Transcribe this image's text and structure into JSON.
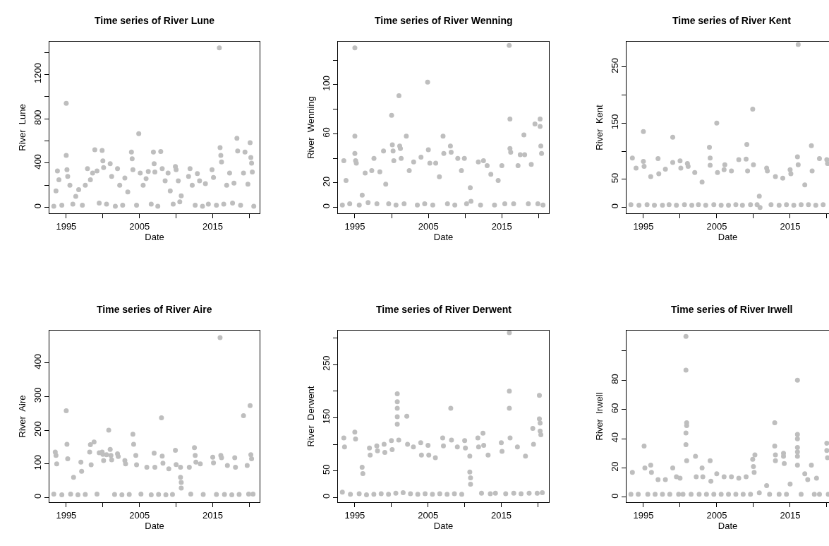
{
  "chart_data": [
    {
      "type": "scatter",
      "title": "Time series of River Lune",
      "xlabel": "Date",
      "ylabel": "River  Lune",
      "color": "#bebebe",
      "marker": "circle",
      "xlim": [
        1992.7,
        2021.4
      ],
      "ylim": [
        -53,
        1496
      ],
      "xticks": [
        1995,
        {
          "value": 2000,
          "label": null
        },
        2005,
        {
          "value": 2010,
          "label": null
        },
        2015,
        {
          "value": 2020,
          "label": null
        }
      ],
      "yticks": [
        0,
        {
          "value": 200,
          "label": null
        },
        400,
        {
          "value": 600,
          "label": null
        },
        800,
        {
          "value": 1000,
          "label": null
        },
        1200,
        {
          "value": 1400,
          "label": null
        }
      ],
      "x": [
        1993.3,
        1993.6,
        1993.8,
        1994.0,
        1994.4,
        1995.0,
        1995.0,
        1995.1,
        1995.2,
        1995.5,
        1995.9,
        1996.3,
        1996.7,
        1997.2,
        1997.6,
        1997.9,
        1998.3,
        1998.6,
        1998.9,
        1999.2,
        1999.5,
        1999.9,
        2000.0,
        2000.1,
        2000.5,
        2001.0,
        2001.2,
        2001.7,
        2002.0,
        2002.3,
        2002.7,
        2003.0,
        2003.4,
        2003.9,
        2004.0,
        2004.1,
        2004.6,
        2004.9,
        2005.1,
        2005.5,
        2005.9,
        2006.2,
        2006.6,
        2006.9,
        2007.0,
        2007.1,
        2007.5,
        2007.9,
        2008.1,
        2008.5,
        2008.9,
        2009.2,
        2009.6,
        2009.9,
        2010.0,
        2010.3,
        2010.5,
        2010.7,
        2011.7,
        2011.9,
        2012.2,
        2012.6,
        2012.9,
        2013.2,
        2013.6,
        2014.0,
        2014.4,
        2014.9,
        2015.1,
        2015.5,
        2015.9,
        2016.0,
        2016.1,
        2016.2,
        2016.5,
        2016.9,
        2017.3,
        2017.7,
        2017.9,
        2018.3,
        2018.4,
        2018.8,
        2019.2,
        2019.4,
        2019.8,
        2020.1,
        2020.2,
        2020.3,
        2020.4,
        2020.6
      ],
      "values": [
        10,
        150,
        330,
        250,
        20,
        940,
        470,
        340,
        280,
        200,
        30,
        100,
        160,
        20,
        200,
        350,
        250,
        310,
        520,
        330,
        40,
        515,
        420,
        360,
        30,
        395,
        280,
        10,
        350,
        200,
        20,
        265,
        140,
        500,
        440,
        340,
        20,
        665,
        310,
        200,
        260,
        325,
        30,
        500,
        395,
        320,
        10,
        505,
        350,
        240,
        310,
        150,
        30,
        370,
        340,
        240,
        50,
        105,
        280,
        350,
        200,
        20,
        305,
        240,
        10,
        215,
        30,
        340,
        270,
        20,
        1440,
        540,
        470,
        410,
        30,
        200,
        310,
        40,
        220,
        625,
        510,
        20,
        310,
        500,
        210,
        585,
        450,
        400,
        320,
        10
      ]
    },
    {
      "type": "scatter",
      "title": "Time series of River Wenning",
      "xlabel": "Date",
      "ylabel": "River  Wenning",
      "color": "#bebebe",
      "marker": "circle",
      "xlim": [
        1992.7,
        2021.4
      ],
      "ylim": [
        -4.8,
        135
      ],
      "xticks": [
        1995,
        {
          "value": 2000,
          "label": null
        },
        2005,
        {
          "value": 2010,
          "label": null
        },
        2015,
        {
          "value": 2020,
          "label": null
        }
      ],
      "yticks": [
        0,
        20,
        {
          "value": 40,
          "label": null
        },
        60,
        {
          "value": 80,
          "label": null
        },
        100,
        {
          "value": 120,
          "label": null
        }
      ],
      "x": [
        1993.3,
        1993.5,
        1993.8,
        1994.3,
        1995.0,
        1995.0,
        1995.0,
        1995.1,
        1995.2,
        1995.6,
        1996.0,
        1996.4,
        1996.8,
        1997.3,
        1997.6,
        1998.0,
        1998.4,
        1998.9,
        1999.2,
        1999.6,
        2000.0,
        2000.1,
        2000.2,
        2000.3,
        2000.6,
        2001.0,
        2001.1,
        2001.2,
        2001.3,
        2001.7,
        2002.0,
        2002.4,
        2003.0,
        2003.5,
        2004.0,
        2004.5,
        2004.9,
        2005.0,
        2005.2,
        2005.6,
        2006.0,
        2006.5,
        2007.0,
        2007.1,
        2007.6,
        2008.0,
        2008.1,
        2008.6,
        2009.0,
        2009.5,
        2009.9,
        2010.2,
        2010.7,
        2010.8,
        2011.8,
        2012.1,
        2012.5,
        2013.0,
        2013.5,
        2014.0,
        2014.5,
        2015.0,
        2015.4,
        2016.0,
        2016.1,
        2016.1,
        2016.2,
        2016.6,
        2017.2,
        2017.5,
        2018.0,
        2018.1,
        2018.6,
        2019.0,
        2019.5,
        2019.9,
        2020.2,
        2020.2,
        2020.3,
        2020.4,
        2020.6
      ],
      "values": [
        2,
        38,
        22,
        3,
        130,
        58,
        44,
        38,
        36,
        2,
        10,
        28,
        4,
        30,
        40,
        3,
        29,
        46,
        19,
        3,
        75,
        51,
        46,
        38,
        2,
        91,
        50,
        48,
        40,
        3,
        58,
        30,
        37,
        2,
        41,
        3,
        102,
        47,
        36,
        2,
        36,
        25,
        58,
        44,
        3,
        50,
        45,
        2,
        40,
        30,
        40,
        3,
        16,
        5,
        37,
        2,
        38,
        34,
        27,
        2,
        22,
        34,
        3,
        132,
        72,
        48,
        45,
        3,
        34,
        43,
        59,
        43,
        3,
        35,
        68,
        3,
        72,
        66,
        50,
        44,
        2
      ]
    },
    {
      "type": "scatter",
      "title": "Time series of River Kent",
      "xlabel": "Date",
      "ylabel": "River  Kent",
      "color": "#bebebe",
      "marker": "circle",
      "xlim": [
        1992.7,
        2020.3
      ],
      "ylim": [
        -10.5,
        295
      ],
      "xticks": [
        1995,
        {
          "value": 2000,
          "label": null
        },
        2005,
        {
          "value": 2010,
          "label": null
        },
        2015,
        {
          "value": 2020,
          "label": null
        }
      ],
      "yticks": [
        0,
        50,
        {
          "value": 100,
          "label": null
        },
        150,
        {
          "value": 200,
          "label": null
        },
        250
      ],
      "x": [
        1993.3,
        1993.5,
        1994.0,
        1994.4,
        1995.0,
        1995.0,
        1995.1,
        1995.5,
        1996.0,
        1996.5,
        1997.0,
        1997.1,
        1997.6,
        1998.0,
        1998.5,
        1999.0,
        1999.0,
        1999.5,
        2000.0,
        2000.1,
        2000.6,
        2001.0,
        2001.1,
        2001.6,
        2002.0,
        2002.5,
        2003.0,
        2003.5,
        2004.0,
        2004.1,
        2004.1,
        2004.6,
        2005.0,
        2005.1,
        2005.6,
        2006.0,
        2006.1,
        2006.6,
        2007.0,
        2007.6,
        2008.0,
        2008.5,
        2009.0,
        2009.1,
        2009.2,
        2009.6,
        2009.9,
        2010.0,
        2010.5,
        2010.8,
        2010.9,
        2011.8,
        2011.9,
        2012.4,
        2013.0,
        2013.5,
        2014.0,
        2014.5,
        2015.0,
        2015.1,
        2015.5,
        2016.0,
        2016.1,
        2016.1,
        2016.5,
        2017.0,
        2017.5,
        2017.9,
        2018.0,
        2018.5,
        2019.0,
        2019.5,
        2020.0,
        2020.1
      ],
      "values": [
        5,
        88,
        70,
        4,
        135,
        82,
        73,
        5,
        55,
        4,
        87,
        60,
        4,
        68,
        5,
        125,
        80,
        4,
        83,
        70,
        5,
        78,
        73,
        4,
        62,
        5,
        45,
        4,
        107,
        88,
        75,
        5,
        150,
        62,
        4,
        67,
        76,
        4,
        65,
        5,
        85,
        4,
        86,
        112,
        65,
        5,
        175,
        76,
        5,
        20,
        0,
        70,
        65,
        5,
        55,
        4,
        52,
        5,
        67,
        60,
        4,
        90,
        290,
        76,
        5,
        40,
        5,
        110,
        65,
        4,
        87,
        5,
        85,
        78
      ]
    },
    {
      "type": "scatter",
      "title": "Time series of River Aire",
      "xlabel": "Date",
      "ylabel": "River  Aire",
      "color": "#bebebe",
      "marker": "circle",
      "xlim": [
        1992.7,
        2021.4
      ],
      "ylim": [
        -14,
        496
      ],
      "xticks": [
        1995,
        {
          "value": 2000,
          "label": null
        },
        2005,
        {
          "value": 2010,
          "label": null
        },
        2015,
        {
          "value": 2020,
          "label": null
        }
      ],
      "yticks": [
        0,
        100,
        200,
        300,
        400
      ],
      "x": [
        1993.3,
        1993.5,
        1993.6,
        1993.7,
        1994.4,
        1995.0,
        1995.1,
        1995.2,
        1995.6,
        1996.0,
        1996.6,
        1997.0,
        1997.1,
        1997.6,
        1998.2,
        1998.3,
        1998.4,
        1998.8,
        1999.2,
        1999.5,
        1999.9,
        2000.0,
        2000.1,
        2000.5,
        2000.8,
        2001.0,
        2001.1,
        2001.2,
        2001.6,
        2002.0,
        2002.1,
        2002.6,
        2003.0,
        2003.1,
        2003.6,
        2004.1,
        2004.2,
        2004.5,
        2004.6,
        2005.2,
        2006.0,
        2006.6,
        2007.0,
        2007.1,
        2007.6,
        2008.0,
        2008.1,
        2008.2,
        2008.6,
        2009.0,
        2009.5,
        2009.9,
        2010.0,
        2010.6,
        2010.6,
        2010.7,
        2010.7,
        2011.8,
        2012.0,
        2012.5,
        2012.6,
        2012.7,
        2013.3,
        2013.7,
        2015.0,
        2015.1,
        2015.5,
        2016.0,
        2016.1,
        2016.2,
        2016.6,
        2017.0,
        2017.6,
        2018.0,
        2018.1,
        2018.6,
        2019.2,
        2019.7,
        2019.9,
        2020.1,
        2020.2,
        2020.3,
        2020.5
      ],
      "values": [
        10,
        135,
        125,
        100,
        8,
        258,
        158,
        115,
        10,
        60,
        8,
        105,
        78,
        9,
        135,
        157,
        97,
        165,
        10,
        133,
        135,
        128,
        110,
        127,
        200,
        143,
        125,
        112,
        9,
        130,
        122,
        8,
        110,
        100,
        9,
        188,
        158,
        125,
        97,
        10,
        90,
        8,
        132,
        90,
        9,
        237,
        123,
        102,
        8,
        85,
        9,
        140,
        98,
        90,
        60,
        45,
        28,
        90,
        10,
        148,
        125,
        105,
        100,
        9,
        120,
        103,
        9,
        475,
        125,
        118,
        9,
        95,
        8,
        118,
        90,
        9,
        243,
        95,
        10,
        273,
        127,
        115,
        10
      ]
    },
    {
      "type": "scatter",
      "title": "Time series of River Derwent",
      "xlabel": "Date",
      "ylabel": "River  Derwent",
      "color": "#bebebe",
      "marker": "circle",
      "xlim": [
        1992.7,
        2021.5
      ],
      "ylim": [
        -8.8,
        314
      ],
      "xticks": [
        1995,
        {
          "value": 2000,
          "label": null
        },
        2005,
        {
          "value": 2010,
          "label": null
        },
        2015,
        {
          "value": 2020,
          "label": null
        }
      ],
      "yticks": [
        0,
        50,
        {
          "value": 100,
          "label": null
        },
        150,
        {
          "value": 200,
          "label": null
        },
        250,
        {
          "value": 300,
          "label": null
        }
      ],
      "x": [
        1993.3,
        1993.5,
        1993.6,
        1994.4,
        1995.0,
        1995.1,
        1995.6,
        1996.0,
        1996.1,
        1996.6,
        1997.0,
        1997.1,
        1997.6,
        1998.0,
        1998.1,
        1998.6,
        1999.0,
        1999.1,
        1999.6,
        2000.0,
        2000.1,
        2000.6,
        2000.8,
        2000.8,
        2000.8,
        2000.8,
        2000.8,
        2001.0,
        2001.6,
        2002.1,
        2002.2,
        2002.6,
        2003.0,
        2003.6,
        2004.0,
        2004.1,
        2004.6,
        2005.0,
        2005.1,
        2005.6,
        2006.0,
        2006.6,
        2007.0,
        2007.1,
        2007.6,
        2008.1,
        2008.2,
        2008.6,
        2009.0,
        2009.6,
        2010.0,
        2010.1,
        2010.7,
        2010.7,
        2010.8,
        2010.8,
        2011.8,
        2011.9,
        2012.3,
        2012.5,
        2012.6,
        2013.2,
        2013.5,
        2014.2,
        2015.0,
        2015.1,
        2015.6,
        2016.1,
        2016.1,
        2016.1,
        2016.2,
        2016.7,
        2017.2,
        2017.7,
        2018.3,
        2018.8,
        2019.3,
        2019.4,
        2019.9,
        2020.2,
        2020.2,
        2020.3,
        2020.3,
        2020.4,
        2020.6
      ],
      "values": [
        10,
        112,
        95,
        6,
        123,
        110,
        7,
        57,
        45,
        5,
        93,
        80,
        6,
        97,
        88,
        7,
        100,
        85,
        6,
        107,
        90,
        8,
        195,
        180,
        168,
        152,
        138,
        108,
        9,
        153,
        100,
        7,
        95,
        6,
        103,
        80,
        7,
        98,
        80,
        6,
        75,
        7,
        112,
        97,
        6,
        168,
        108,
        7,
        95,
        6,
        107,
        93,
        78,
        48,
        37,
        25,
        112,
        95,
        8,
        121,
        98,
        80,
        7,
        8,
        103,
        87,
        7,
        310,
        200,
        168,
        112,
        8,
        95,
        7,
        78,
        8,
        130,
        100,
        8,
        192,
        148,
        140,
        125,
        118,
        9
      ]
    },
    {
      "type": "scatter",
      "title": "Time series of River Irwell",
      "xlabel": "Date",
      "ylabel": "River  Irwell",
      "color": "#bebebe",
      "marker": "circle",
      "xlim": [
        1992.7,
        2020.3
      ],
      "ylim": [
        -3.4,
        114
      ],
      "xticks": [
        1995,
        {
          "value": 2000,
          "label": null
        },
        2005,
        {
          "value": 2010,
          "label": null
        },
        2015,
        {
          "value": 2020,
          "label": null
        }
      ],
      "yticks": [
        0,
        20,
        40,
        60,
        80,
        {
          "value": 100,
          "label": null
        }
      ],
      "x": [
        1993.3,
        1993.5,
        1994.3,
        1995.1,
        1995.2,
        1995.6,
        1996.0,
        1996.1,
        1996.6,
        1997.0,
        1997.6,
        1998.0,
        1998.6,
        1999.0,
        1999.5,
        1999.8,
        2000.0,
        2000.4,
        2000.8,
        2000.8,
        2000.9,
        2000.9,
        2000.8,
        2000.8,
        2000.9,
        2001.5,
        2002.1,
        2002.2,
        2002.6,
        2003.0,
        2003.1,
        2003.6,
        2004.1,
        2004.2,
        2004.6,
        2005.0,
        2005.6,
        2006.0,
        2006.6,
        2007.0,
        2007.6,
        2008.0,
        2008.6,
        2009.0,
        2009.6,
        2009.9,
        2010.0,
        2010.1,
        2010.2,
        2010.8,
        2011.8,
        2012.2,
        2012.9,
        2012.9,
        2013.0,
        2013.0,
        2013.5,
        2014.1,
        2014.1,
        2014.2,
        2014.5,
        2015.0,
        2016.0,
        2016.0,
        2016.0,
        2016.0,
        2016.0,
        2016.0,
        2016.0,
        2016.5,
        2017.0,
        2017.4,
        2017.9,
        2018.3,
        2018.6,
        2019.0,
        2020.0,
        2020.0,
        2020.1,
        2020.2
      ],
      "values": [
        2,
        17,
        2,
        35,
        20,
        2,
        22,
        17,
        2,
        12,
        2,
        12,
        2,
        20,
        14,
        2,
        13,
        2,
        110,
        87,
        51,
        49,
        44,
        36,
        25,
        2,
        28,
        14,
        2,
        20,
        14,
        2,
        25,
        11,
        2,
        16,
        2,
        14,
        2,
        14,
        2,
        13,
        2,
        14,
        2,
        26,
        21,
        17,
        29,
        3,
        8,
        2,
        51,
        35,
        29,
        25,
        2,
        30,
        28,
        23,
        2,
        9,
        80,
        43,
        40,
        34,
        31,
        28,
        22,
        2,
        16,
        12,
        22,
        2,
        13,
        2,
        37,
        32,
        27,
        2
      ]
    }
  ]
}
